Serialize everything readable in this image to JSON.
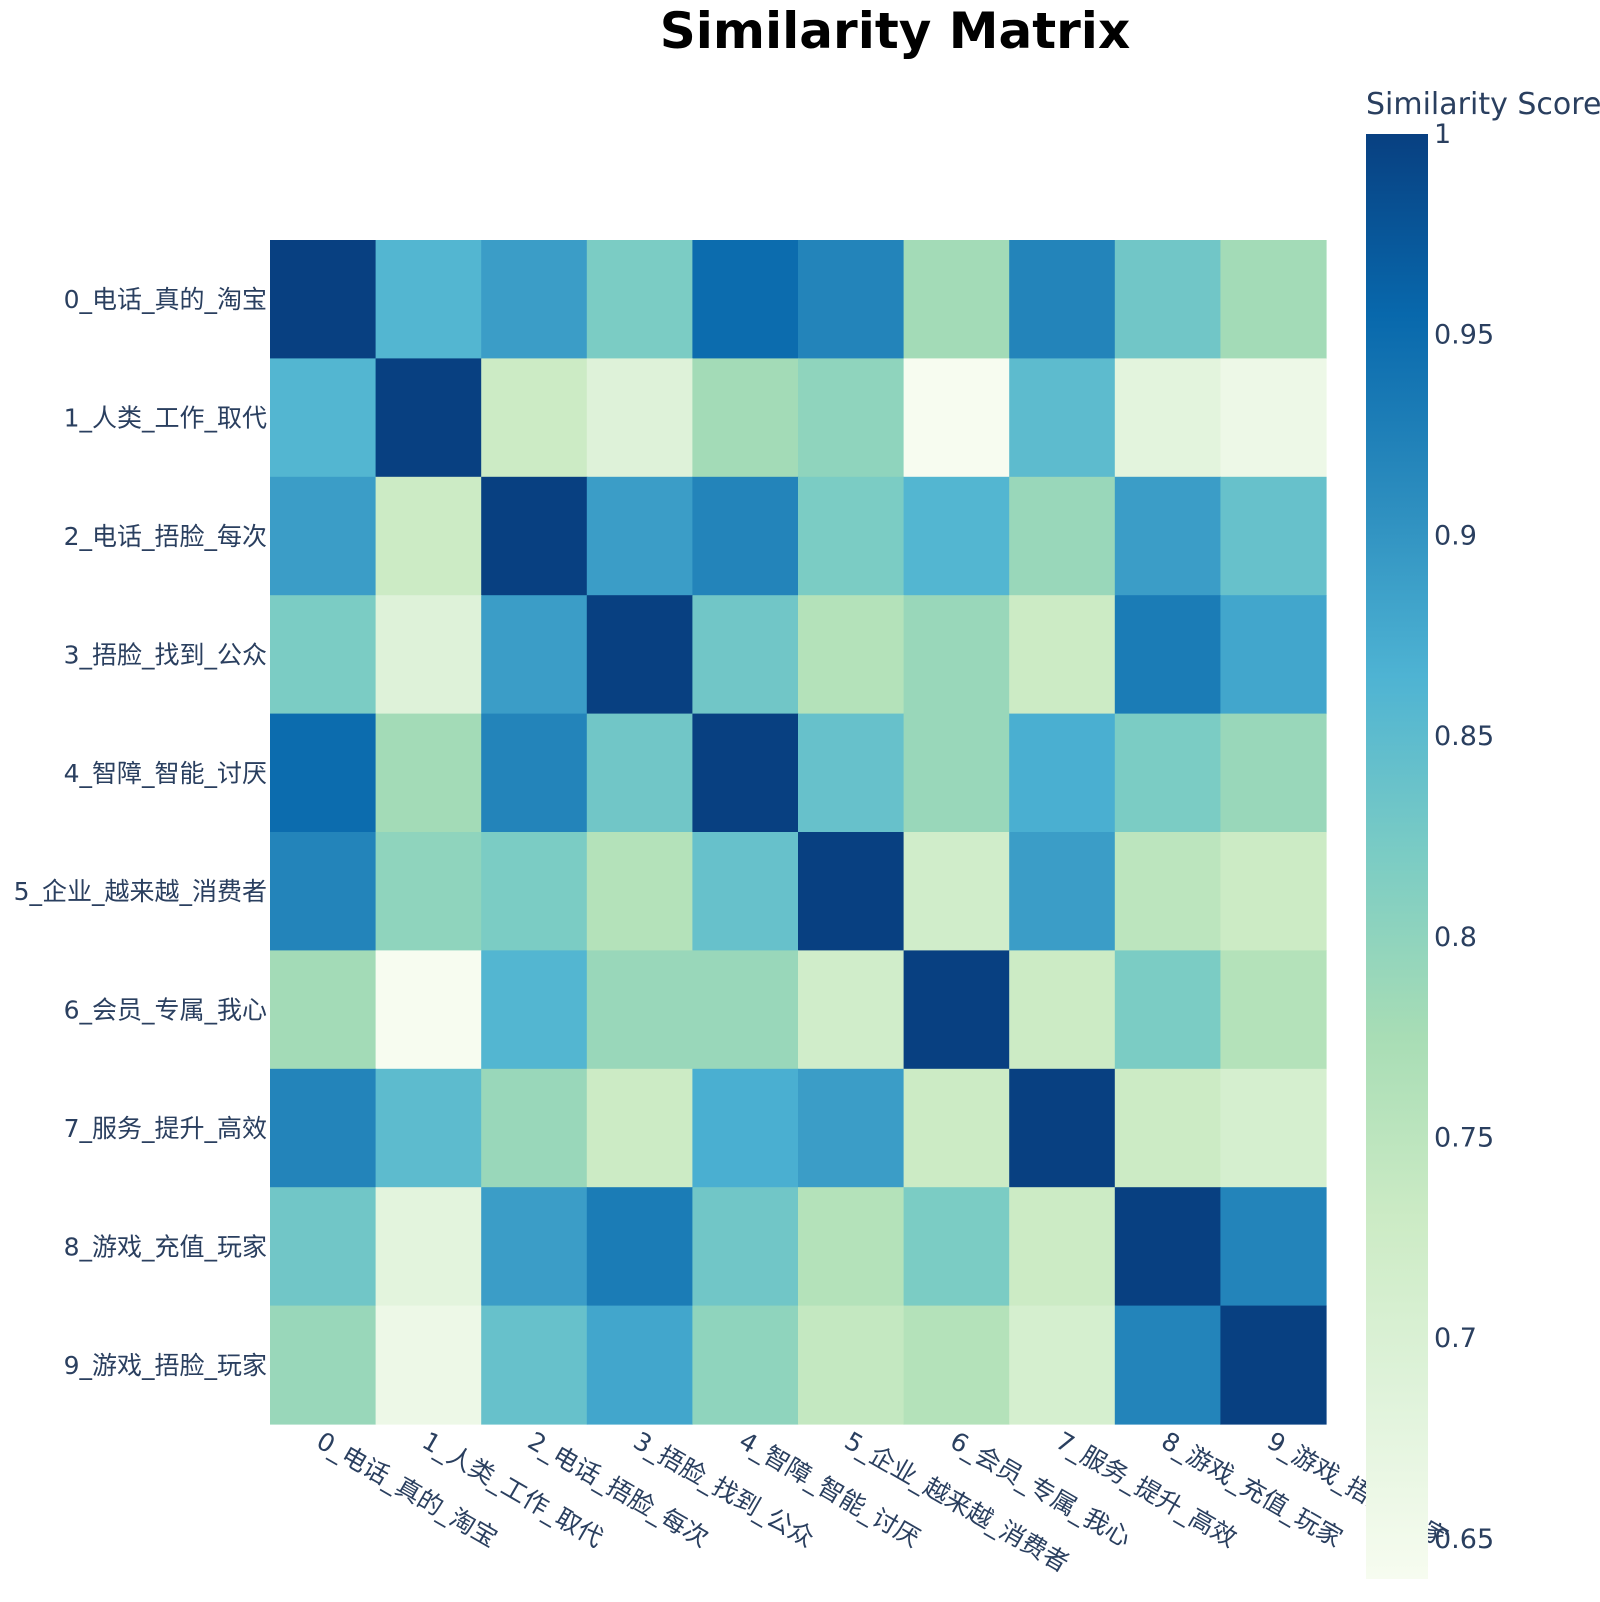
{
  "chart_data": {
    "type": "heatmap",
    "title": "Similarity Matrix",
    "x_categories": [
      "0_电话_真的_淘宝",
      "1_人类_工作_取代",
      "2_电话_捂脸_每次",
      "3_捂脸_找到_公众",
      "4_智障_智能_讨厌",
      "5_企业_越来越_消费者",
      "6_会员_专属_我心",
      "7_服务_提升_高效",
      "8_游戏_充值_玩家",
      "9_游戏_捂脸_玩家"
    ],
    "y_categories": [
      "0_电话_真的_淘宝",
      "1_人类_工作_取代",
      "2_电话_捂脸_每次",
      "3_捂脸_找到_公众",
      "4_智障_智能_讨厌",
      "5_企业_越来越_消费者",
      "6_会员_专属_我心",
      "7_服务_提升_高效",
      "8_游戏_充值_玩家",
      "9_游戏_捂脸_玩家"
    ],
    "values": [
      [
        1.0,
        0.86,
        0.89,
        0.82,
        0.95,
        0.92,
        0.78,
        0.92,
        0.83,
        0.78
      ],
      [
        0.86,
        1.0,
        0.73,
        0.69,
        0.78,
        0.8,
        0.64,
        0.85,
        0.68,
        0.66
      ],
      [
        0.89,
        0.73,
        1.0,
        0.89,
        0.92,
        0.82,
        0.86,
        0.79,
        0.89,
        0.84
      ],
      [
        0.82,
        0.69,
        0.89,
        1.0,
        0.83,
        0.76,
        0.79,
        0.73,
        0.93,
        0.88
      ],
      [
        0.95,
        0.78,
        0.92,
        0.83,
        1.0,
        0.84,
        0.79,
        0.87,
        0.82,
        0.79
      ],
      [
        0.92,
        0.8,
        0.82,
        0.76,
        0.84,
        1.0,
        0.72,
        0.89,
        0.75,
        0.73
      ],
      [
        0.78,
        0.64,
        0.86,
        0.79,
        0.79,
        0.72,
        1.0,
        0.73,
        0.82,
        0.76
      ],
      [
        0.92,
        0.85,
        0.79,
        0.73,
        0.87,
        0.89,
        0.73,
        1.0,
        0.73,
        0.71
      ],
      [
        0.83,
        0.68,
        0.89,
        0.93,
        0.83,
        0.76,
        0.82,
        0.73,
        1.0,
        0.92
      ],
      [
        0.79,
        0.66,
        0.84,
        0.88,
        0.8,
        0.74,
        0.76,
        0.71,
        0.92,
        1.0
      ]
    ],
    "colorbar": {
      "title": "Similarity Score",
      "range": [
        0.64,
        1.0
      ],
      "ticks": [
        0.65,
        0.7,
        0.75,
        0.8,
        0.85,
        0.9,
        0.95,
        1
      ],
      "tick_labels": [
        "0.65",
        "0.7",
        "0.75",
        "0.8",
        "0.85",
        "0.9",
        "0.95",
        "1"
      ]
    },
    "colorscale": "GnBu",
    "colorscale_stops": [
      [
        0.0,
        "#f7fcf0"
      ],
      [
        0.125,
        "#e0f3db"
      ],
      [
        0.25,
        "#ccebc5"
      ],
      [
        0.375,
        "#a8ddb5"
      ],
      [
        0.5,
        "#7bccc4"
      ],
      [
        0.625,
        "#4eb3d3"
      ],
      [
        0.75,
        "#2b8cbe"
      ],
      [
        0.875,
        "#0868ac"
      ],
      [
        1.0,
        "#084081"
      ]
    ]
  }
}
